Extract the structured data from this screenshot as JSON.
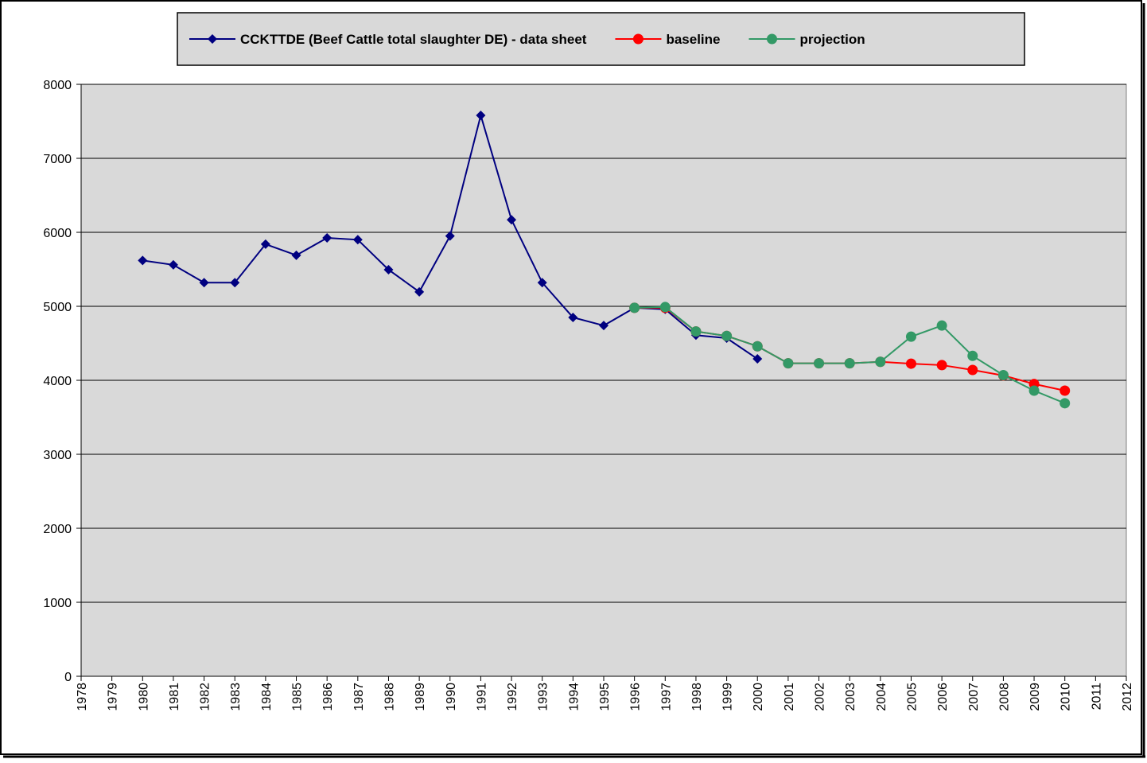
{
  "chart_data": {
    "type": "line",
    "x": [
      1980,
      1981,
      1982,
      1983,
      1984,
      1985,
      1986,
      1987,
      1988,
      1989,
      1990,
      1991,
      1992,
      1993,
      1994,
      1995,
      1996,
      1997,
      1998,
      1999,
      2000,
      2001,
      2002,
      2003,
      2004,
      2005,
      2006,
      2007,
      2008,
      2009,
      2010
    ],
    "series": [
      {
        "name": "CCKTTDE (Beef Cattle total slaughter DE) - data sheet",
        "color": "#000080",
        "marker": "diamond",
        "values": [
          5620,
          5560,
          5320,
          5320,
          5840,
          5690,
          5925,
          5900,
          5495,
          5195,
          5950,
          7580,
          6170,
          5320,
          4850,
          4740,
          4980,
          4960,
          4610,
          4570,
          4290,
          null,
          null,
          null,
          null,
          null,
          null,
          null,
          null,
          null,
          null
        ]
      },
      {
        "name": "baseline",
        "color": "#ff0000",
        "marker": "circle",
        "values": [
          null,
          null,
          null,
          null,
          null,
          null,
          null,
          null,
          null,
          null,
          null,
          null,
          null,
          null,
          null,
          null,
          4980,
          4980,
          4660,
          4600,
          4460,
          4230,
          4230,
          4230,
          4250,
          4225,
          4205,
          4140,
          4065,
          3950,
          3860
        ]
      },
      {
        "name": "projection",
        "color": "#339966",
        "marker": "circle",
        "values": [
          null,
          null,
          null,
          null,
          null,
          null,
          null,
          null,
          null,
          null,
          null,
          null,
          null,
          null,
          null,
          null,
          4980,
          4990,
          4660,
          4600,
          4460,
          4230,
          4230,
          4230,
          4250,
          4590,
          4740,
          4330,
          4070,
          3860,
          3690
        ]
      }
    ],
    "xlim": [
      1978,
      2012
    ],
    "xticks": [
      1978,
      1979,
      1980,
      1981,
      1982,
      1983,
      1984,
      1985,
      1986,
      1987,
      1988,
      1989,
      1990,
      1991,
      1992,
      1993,
      1994,
      1995,
      1996,
      1997,
      1998,
      1999,
      2000,
      2001,
      2002,
      2003,
      2004,
      2005,
      2006,
      2007,
      2008,
      2009,
      2010,
      2011,
      2012
    ],
    "ylim": [
      0,
      8000
    ],
    "yticks": [
      0,
      1000,
      2000,
      3000,
      4000,
      5000,
      6000,
      7000,
      8000
    ],
    "grid": true,
    "legend": "top"
  }
}
